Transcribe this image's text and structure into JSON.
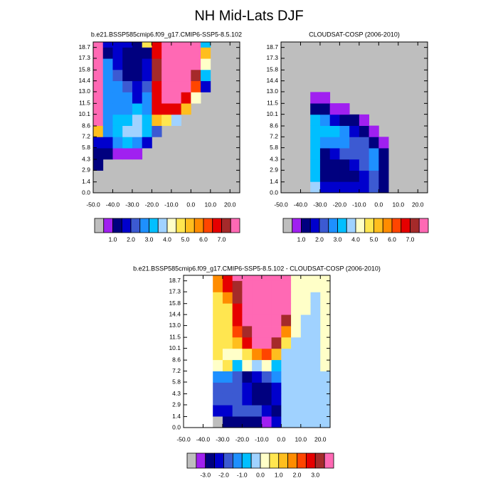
{
  "title": "NH Mid-Lats DJF",
  "chart_data": [
    {
      "type": "heatmap",
      "title": "b.e21.BSSP585cmip6.f09_g17.CMIP6-SSP5-8.5.102",
      "xlim": [
        -50,
        25
      ],
      "ylim": [
        0,
        19.4
      ],
      "xticks": [
        {
          "value": -50,
          "label": "-50.0"
        },
        {
          "value": -40,
          "label": "-40.0"
        },
        {
          "value": -30,
          "label": "-30.0"
        },
        {
          "value": -20,
          "label": "-20.0"
        },
        {
          "value": -10,
          "label": "-10.0"
        },
        {
          "value": 0,
          "label": "0.0"
        },
        {
          "value": 10,
          "label": "10.0"
        },
        {
          "value": 20,
          "label": "20.0"
        }
      ],
      "yticks": [
        {
          "value": 0,
          "label": "0.0"
        },
        1.4,
        2.9,
        4.3,
        5.8,
        7.2,
        8.6,
        10.1,
        11.5,
        {
          "value": 13,
          "label": "13.0"
        },
        14.4,
        15.8,
        17.3,
        18.7
      ],
      "x_edges": [
        -50,
        -45,
        -40,
        -35,
        -30,
        -25,
        -20,
        -15,
        -10,
        -5,
        0,
        5,
        10,
        15,
        20,
        25
      ],
      "y_edges": [
        0,
        1.44,
        2.88,
        4.32,
        5.76,
        7.2,
        8.64,
        10.08,
        11.52,
        12.96,
        14.4,
        15.84,
        17.28,
        18.72,
        19.4
      ],
      "missing_color": "#bebebe",
      "z": [
        [
          null,
          null,
          null,
          null,
          null,
          null,
          null,
          null,
          null,
          null,
          null,
          null,
          null,
          null,
          null
        ],
        [
          null,
          null,
          null,
          null,
          null,
          null,
          null,
          null,
          null,
          null,
          null,
          null,
          null,
          null,
          null
        ],
        [
          1.2,
          null,
          null,
          null,
          null,
          null,
          null,
          null,
          null,
          null,
          null,
          null,
          null,
          null,
          null
        ],
        [
          1.2,
          1.0,
          0.8,
          0.8,
          0.8,
          null,
          null,
          null,
          null,
          null,
          null,
          null,
          null,
          null,
          null
        ],
        [
          1.5,
          1.5,
          2.5,
          3,
          2.5,
          1.5,
          null,
          null,
          null,
          null,
          null,
          null,
          null,
          null,
          null
        ],
        [
          5,
          2.5,
          3,
          3.5,
          3.5,
          3,
          2,
          null,
          null,
          null,
          null,
          null,
          null,
          null,
          null
        ],
        [
          7.8,
          2.5,
          3,
          3,
          3.5,
          3,
          5,
          4.5,
          3.5,
          null,
          null,
          null,
          null,
          null,
          null
        ],
        [
          7.8,
          2.5,
          2.5,
          2.5,
          3,
          2.5,
          6.7,
          6.7,
          6.5,
          5,
          null,
          null,
          null,
          null,
          null
        ],
        [
          7.8,
          2.5,
          2.5,
          2.5,
          1.5,
          2.5,
          6.7,
          8,
          8,
          6.5,
          4,
          null,
          null,
          null,
          null
        ],
        [
          7.8,
          2.5,
          2.5,
          2.0,
          1.5,
          2.0,
          6.7,
          8,
          8,
          7.5,
          6,
          1.5,
          null,
          null,
          null
        ],
        [
          7.8,
          2.5,
          2.0,
          1.0,
          1.0,
          1.5,
          7,
          8,
          8,
          8,
          7,
          3,
          null,
          null,
          null
        ],
        [
          7.8,
          2.5,
          1.5,
          1.0,
          1.2,
          1.5,
          7,
          8,
          8,
          8,
          7.5,
          4,
          null,
          null,
          null
        ],
        [
          7.8,
          1.2,
          1.5,
          1.2,
          1.0,
          1.2,
          6.7,
          8,
          8,
          8,
          8,
          5,
          null,
          null,
          null
        ],
        [
          7.8,
          1.5,
          1.5,
          1.5,
          1.2,
          4.5,
          6.5,
          8,
          8,
          8,
          8,
          3,
          null,
          null,
          null
        ]
      ],
      "colorbar": {
        "levels": [
          0.5,
          {
            "value": 1,
            "label": "1.0"
          },
          1.5,
          {
            "value": 2,
            "label": "2.0"
          },
          2.5,
          {
            "value": 3,
            "label": "3.0"
          },
          3.5,
          {
            "value": 4,
            "label": "4.0"
          },
          4.5,
          {
            "value": 5,
            "label": "5.0"
          },
          5.5,
          {
            "value": 6,
            "label": "6.0"
          },
          6.5,
          {
            "value": 7,
            "label": "7.0"
          },
          7.5
        ],
        "colors": [
          "#bebebe",
          "#a020f0",
          "#00007f",
          "#0000cd",
          "#3c5ad2",
          "#1e90ff",
          "#00bfff",
          "#a0d2ff",
          "#ffffc8",
          "#ffe650",
          "#ffbe1e",
          "#ff8c00",
          "#ff4500",
          "#e60000",
          "#a52a2a",
          "#ff69b4"
        ]
      }
    },
    {
      "type": "heatmap",
      "title": "CLOUDSAT-COSP (2006-2010)",
      "xlim": [
        -50,
        25
      ],
      "ylim": [
        0,
        19.4
      ],
      "xticks": [
        {
          "value": -50,
          "label": "-50.0"
        },
        {
          "value": -40,
          "label": "-40.0"
        },
        {
          "value": -30,
          "label": "-30.0"
        },
        {
          "value": -20,
          "label": "-20.0"
        },
        {
          "value": -10,
          "label": "-10.0"
        },
        {
          "value": 0,
          "label": "0.0"
        },
        {
          "value": 10,
          "label": "10.0"
        },
        {
          "value": 20,
          "label": "20.0"
        }
      ],
      "yticks": [
        {
          "value": 0,
          "label": "0.0"
        },
        1.4,
        2.9,
        4.3,
        5.8,
        7.2,
        8.6,
        10.1,
        11.5,
        {
          "value": 13,
          "label": "13.0"
        },
        14.4,
        15.8,
        17.3,
        18.7
      ],
      "x_edges": [
        -50,
        -45,
        -40,
        -35,
        -30,
        -25,
        -20,
        -15,
        -10,
        -5,
        0,
        5,
        10,
        15,
        20,
        25
      ],
      "y_edges": [
        0,
        1.44,
        2.88,
        4.32,
        5.76,
        7.2,
        8.64,
        10.08,
        11.52,
        12.96,
        14.4,
        15.84,
        17.28,
        18.72,
        19.4
      ],
      "missing_color": "#bebebe",
      "z": [
        [
          null,
          null,
          null,
          3.5,
          1.5,
          1.5,
          1.5,
          1.5,
          1.5,
          2,
          1.2,
          null,
          null,
          null,
          null
        ],
        [
          null,
          null,
          null,
          3,
          1.2,
          1.2,
          1.2,
          1.2,
          1.5,
          2,
          1.2,
          null,
          null,
          null,
          null
        ],
        [
          null,
          null,
          null,
          3,
          1.2,
          1.2,
          1.2,
          1.5,
          2,
          2.5,
          1.2,
          null,
          null,
          null,
          null
        ],
        [
          null,
          null,
          null,
          3,
          1.2,
          1.5,
          2,
          2,
          2,
          2.5,
          1.2,
          null,
          null,
          null,
          null
        ],
        [
          null,
          null,
          null,
          3,
          2.5,
          2.5,
          2.5,
          2,
          2,
          1.2,
          0.8,
          null,
          null,
          null,
          null
        ],
        [
          null,
          null,
          null,
          3,
          3,
          3,
          2.5,
          1.5,
          1.2,
          0.8,
          null,
          null,
          null,
          null,
          null
        ],
        [
          null,
          null,
          null,
          3,
          2.5,
          1.5,
          1.2,
          1.0,
          0.8,
          null,
          null,
          null,
          null,
          null,
          null
        ],
        [
          null,
          null,
          null,
          1.2,
          1.0,
          0.8,
          0.8,
          null,
          null,
          null,
          null,
          null,
          null,
          null,
          null
        ],
        [
          null,
          null,
          null,
          0.8,
          0.8,
          null,
          null,
          null,
          null,
          null,
          null,
          null,
          null,
          null,
          null
        ],
        [
          null,
          null,
          null,
          null,
          null,
          null,
          null,
          null,
          null,
          null,
          null,
          null,
          null,
          null,
          null
        ],
        [
          null,
          null,
          null,
          null,
          null,
          null,
          null,
          null,
          null,
          null,
          null,
          null,
          null,
          null,
          null
        ],
        [
          null,
          null,
          null,
          null,
          null,
          null,
          null,
          null,
          null,
          null,
          null,
          null,
          null,
          null,
          null
        ],
        [
          null,
          null,
          null,
          null,
          null,
          null,
          null,
          null,
          null,
          null,
          null,
          null,
          null,
          null,
          null
        ],
        [
          null,
          null,
          null,
          null,
          null,
          null,
          null,
          null,
          null,
          null,
          null,
          null,
          null,
          null,
          null
        ]
      ],
      "colorbar": {
        "levels": [
          0.5,
          {
            "value": 1,
            "label": "1.0"
          },
          1.5,
          {
            "value": 2,
            "label": "2.0"
          },
          2.5,
          {
            "value": 3,
            "label": "3.0"
          },
          3.5,
          {
            "value": 4,
            "label": "4.0"
          },
          4.5,
          {
            "value": 5,
            "label": "5.0"
          },
          5.5,
          {
            "value": 6,
            "label": "6.0"
          },
          6.5,
          {
            "value": 7,
            "label": "7.0"
          },
          7.5
        ],
        "colors": [
          "#bebebe",
          "#a020f0",
          "#00007f",
          "#0000cd",
          "#3c5ad2",
          "#1e90ff",
          "#00bfff",
          "#a0d2ff",
          "#ffffc8",
          "#ffe650",
          "#ffbe1e",
          "#ff8c00",
          "#ff4500",
          "#e60000",
          "#a52a2a",
          "#ff69b4"
        ]
      }
    },
    {
      "type": "heatmap",
      "title": "b.e21.BSSP585cmip6.f09_g17.CMIP6-SSP5-8.5.102 - CLOUDSAT-COSP (2006-2010)",
      "xlim": [
        -50,
        25
      ],
      "ylim": [
        0,
        19.4
      ],
      "xticks": [
        {
          "value": -50,
          "label": "-50.0"
        },
        {
          "value": -40,
          "label": "-40.0"
        },
        {
          "value": -30,
          "label": "-30.0"
        },
        {
          "value": -20,
          "label": "-20.0"
        },
        {
          "value": -10,
          "label": "-10.0"
        },
        {
          "value": 0,
          "label": "0.0"
        },
        {
          "value": 10,
          "label": "10.0"
        },
        {
          "value": 20,
          "label": "20.0"
        }
      ],
      "yticks": [
        {
          "value": 0,
          "label": "0.0"
        },
        1.4,
        2.9,
        4.3,
        5.8,
        7.2,
        8.6,
        10.1,
        11.5,
        {
          "value": 13,
          "label": "13.0"
        },
        14.4,
        15.8,
        17.3,
        18.7
      ],
      "x_edges": [
        -50,
        -45,
        -40,
        -35,
        -30,
        -25,
        -20,
        -15,
        -10,
        -5,
        0,
        5,
        10,
        15,
        20,
        25
      ],
      "y_edges": [
        0,
        1.44,
        2.88,
        4.32,
        5.76,
        7.2,
        8.64,
        10.08,
        11.52,
        12.96,
        14.4,
        15.84,
        17.28,
        18.72,
        19.4
      ],
      "missing_color": "#ffffff",
      "z": [
        [
          null,
          null,
          null,
          -3.75,
          -2.75,
          -2.75,
          -2.75,
          -2.75,
          -3.25,
          -2.25,
          -0.25,
          -0.25,
          -0.25,
          -0.25,
          -0.25
        ],
        [
          null,
          null,
          null,
          -2.25,
          -2.25,
          -1.75,
          -1.75,
          -1.75,
          -2.25,
          -2.75,
          -0.25,
          -0.25,
          -0.25,
          -0.25,
          -0.25
        ],
        [
          null,
          null,
          null,
          -1.75,
          -1.75,
          -1.75,
          -2.25,
          -2.75,
          -2.75,
          -2.25,
          -0.25,
          -0.25,
          -0.25,
          -0.25,
          -0.25
        ],
        [
          null,
          null,
          null,
          -1.75,
          -1.75,
          -1.75,
          -2.25,
          -2.75,
          -2.75,
          -2.25,
          -0.25,
          -0.25,
          -0.25,
          -0.25,
          -0.25
        ],
        [
          null,
          null,
          null,
          -1.25,
          -1.25,
          -1.75,
          -2.75,
          -2.25,
          -1.75,
          -1.25,
          -0.25,
          -0.25,
          -0.25,
          -0.25,
          -0.25
        ],
        [
          null,
          null,
          null,
          0.25,
          0.75,
          -0.75,
          0.25,
          -0.25,
          0.25,
          -0.75,
          -0.25,
          -0.25,
          -0.25,
          -0.25,
          0.25
        ],
        [
          null,
          null,
          null,
          0.75,
          0.25,
          0.25,
          0.75,
          1.5,
          2,
          1,
          -0.25,
          -0.25,
          -0.25,
          -0.25,
          0.25
        ],
        [
          null,
          null,
          null,
          0.75,
          0.75,
          1,
          2.5,
          4,
          4,
          3,
          0.75,
          -0.25,
          -0.25,
          -0.25,
          0.25
        ],
        [
          null,
          null,
          null,
          0.75,
          0.75,
          2,
          3,
          4,
          4,
          4,
          1.5,
          0.25,
          -0.25,
          -0.25,
          0.25
        ],
        [
          null,
          null,
          null,
          0.75,
          0.75,
          2.5,
          4,
          4,
          4,
          4,
          3,
          0.25,
          -0.25,
          -0.25,
          0.25
        ],
        [
          null,
          null,
          null,
          0.75,
          0.75,
          2.5,
          4,
          4,
          4,
          4,
          4,
          0.25,
          0.25,
          -0.25,
          0.25
        ],
        [
          null,
          null,
          null,
          0.75,
          1.5,
          3,
          4,
          4,
          4,
          4,
          4,
          0.25,
          0.25,
          -0.25,
          0.25
        ],
        [
          null,
          null,
          null,
          1.5,
          2.5,
          3,
          4,
          4,
          4,
          4,
          4,
          0.25,
          0.25,
          0.25,
          0.25
        ],
        [
          null,
          null,
          null,
          1.5,
          2.5,
          4,
          4,
          4,
          4,
          4,
          4,
          0.25,
          0.25,
          0.25,
          0.25
        ]
      ],
      "colorbar": {
        "levels": [
          -3.5,
          {
            "value": -3,
            "label": "-3.0"
          },
          -2.5,
          {
            "value": -2,
            "label": "-2.0"
          },
          -1.5,
          {
            "value": -1,
            "label": "-1.0"
          },
          -0.5,
          {
            "value": 0,
            "label": "0.0"
          },
          0.5,
          {
            "value": 1,
            "label": "1.0"
          },
          1.5,
          {
            "value": 2,
            "label": "2.0"
          },
          2.5,
          {
            "value": 3,
            "label": "3.0"
          },
          3.5
        ],
        "colors": [
          "#bebebe",
          "#a020f0",
          "#00007f",
          "#0000cd",
          "#3c5ad2",
          "#1e90ff",
          "#00bfff",
          "#a0d2ff",
          "#ffffc8",
          "#ffe650",
          "#ffbe1e",
          "#ff8c00",
          "#ff4500",
          "#e60000",
          "#a52a2a",
          "#ff69b4"
        ]
      }
    }
  ]
}
